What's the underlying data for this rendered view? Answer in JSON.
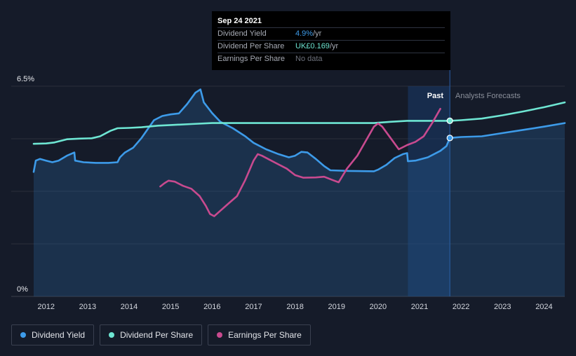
{
  "tooltip": {
    "date": "Sep 24 2021",
    "rows": [
      {
        "label": "Dividend Yield",
        "value": "4.9%",
        "unit": " /yr",
        "color": "#3d9be9"
      },
      {
        "label": "Dividend Per Share",
        "value": "UK£0.169",
        "unit": " /yr",
        "color": "#6ee6d3"
      },
      {
        "label": "Earnings Per Share",
        "value": "No data",
        "unit": "",
        "color": "#6d717c"
      }
    ]
  },
  "legend": [
    {
      "label": "Dividend Yield",
      "color": "#3d9be9"
    },
    {
      "label": "Dividend Per Share",
      "color": "#6ee6d3"
    },
    {
      "label": "Earnings Per Share",
      "color": "#c84a8f"
    }
  ],
  "chart_data": {
    "type": "line",
    "y_top_label": "6.5%",
    "y_bottom_label": "0%",
    "ylim": [
      0,
      6.5
    ],
    "xlim": [
      2011.7,
      2024.5
    ],
    "x_ticks": [
      "2012",
      "2013",
      "2014",
      "2015",
      "2016",
      "2017",
      "2018",
      "2019",
      "2020",
      "2021",
      "2022",
      "2023",
      "2024"
    ],
    "past_label": "Past",
    "forecast_label": "Analysts Forecasts",
    "forecast_start": 2021.73,
    "forecast_band_start": 2020.72,
    "grid": true,
    "series": [
      {
        "name": "Dividend Yield",
        "color": "#3d9be9",
        "area": true,
        "points": [
          [
            2011.7,
            3.85
          ],
          [
            2011.75,
            4.2
          ],
          [
            2011.85,
            4.25
          ],
          [
            2012.0,
            4.2
          ],
          [
            2012.15,
            4.15
          ],
          [
            2012.3,
            4.2
          ],
          [
            2012.5,
            4.35
          ],
          [
            2012.68,
            4.45
          ],
          [
            2012.7,
            4.2
          ],
          [
            2012.9,
            4.15
          ],
          [
            2013.2,
            4.13
          ],
          [
            2013.5,
            4.13
          ],
          [
            2013.72,
            4.15
          ],
          [
            2013.78,
            4.3
          ],
          [
            2013.9,
            4.45
          ],
          [
            2014.1,
            4.6
          ],
          [
            2014.3,
            4.9
          ],
          [
            2014.6,
            5.45
          ],
          [
            2014.8,
            5.58
          ],
          [
            2015.0,
            5.63
          ],
          [
            2015.2,
            5.66
          ],
          [
            2015.4,
            5.95
          ],
          [
            2015.6,
            6.3
          ],
          [
            2015.72,
            6.4
          ],
          [
            2015.8,
            6.0
          ],
          [
            2016.0,
            5.67
          ],
          [
            2016.2,
            5.4
          ],
          [
            2016.5,
            5.2
          ],
          [
            2016.8,
            4.95
          ],
          [
            2017.0,
            4.75
          ],
          [
            2017.3,
            4.55
          ],
          [
            2017.6,
            4.4
          ],
          [
            2017.85,
            4.3
          ],
          [
            2018.0,
            4.35
          ],
          [
            2018.15,
            4.47
          ],
          [
            2018.3,
            4.45
          ],
          [
            2018.5,
            4.25
          ],
          [
            2018.7,
            4.03
          ],
          [
            2018.85,
            3.9
          ],
          [
            2019.3,
            3.88
          ],
          [
            2019.9,
            3.87
          ],
          [
            2020.0,
            3.92
          ],
          [
            2020.2,
            4.07
          ],
          [
            2020.4,
            4.28
          ],
          [
            2020.6,
            4.4
          ],
          [
            2020.7,
            4.43
          ],
          [
            2020.72,
            4.18
          ],
          [
            2020.9,
            4.2
          ],
          [
            2021.2,
            4.3
          ],
          [
            2021.5,
            4.5
          ],
          [
            2021.65,
            4.65
          ],
          [
            2021.73,
            4.9
          ],
          [
            2022.0,
            4.93
          ],
          [
            2022.5,
            4.95
          ],
          [
            2023.0,
            5.05
          ],
          [
            2023.5,
            5.15
          ],
          [
            2024.0,
            5.25
          ],
          [
            2024.5,
            5.36
          ]
        ]
      },
      {
        "name": "Dividend Per Share",
        "color": "#6ee6d3",
        "area": false,
        "points": [
          [
            2011.7,
            4.72
          ],
          [
            2012.0,
            4.73
          ],
          [
            2012.2,
            4.76
          ],
          [
            2012.5,
            4.86
          ],
          [
            2012.8,
            4.88
          ],
          [
            2013.1,
            4.89
          ],
          [
            2013.3,
            4.95
          ],
          [
            2013.55,
            5.12
          ],
          [
            2013.72,
            5.2
          ],
          [
            2014.0,
            5.21
          ],
          [
            2014.3,
            5.23
          ],
          [
            2014.7,
            5.28
          ],
          [
            2015.0,
            5.3
          ],
          [
            2015.5,
            5.33
          ],
          [
            2016.0,
            5.36
          ],
          [
            2017.0,
            5.36
          ],
          [
            2018.0,
            5.36
          ],
          [
            2019.0,
            5.36
          ],
          [
            2019.9,
            5.36
          ],
          [
            2020.3,
            5.4
          ],
          [
            2020.7,
            5.43
          ],
          [
            2021.0,
            5.43
          ],
          [
            2021.5,
            5.43
          ],
          [
            2021.73,
            5.43
          ],
          [
            2022.0,
            5.45
          ],
          [
            2022.5,
            5.5
          ],
          [
            2023.0,
            5.6
          ],
          [
            2023.5,
            5.72
          ],
          [
            2024.0,
            5.85
          ],
          [
            2024.5,
            6.0
          ]
        ]
      },
      {
        "name": "Earnings Per Share",
        "color": "#c84a8f",
        "area": false,
        "points": [
          [
            2014.75,
            3.4
          ],
          [
            2014.85,
            3.5
          ],
          [
            2014.95,
            3.58
          ],
          [
            2015.1,
            3.55
          ],
          [
            2015.3,
            3.42
          ],
          [
            2015.5,
            3.33
          ],
          [
            2015.7,
            3.1
          ],
          [
            2015.85,
            2.8
          ],
          [
            2015.95,
            2.55
          ],
          [
            2016.05,
            2.48
          ],
          [
            2016.2,
            2.65
          ],
          [
            2016.4,
            2.88
          ],
          [
            2016.6,
            3.1
          ],
          [
            2016.8,
            3.6
          ],
          [
            2017.0,
            4.2
          ],
          [
            2017.1,
            4.4
          ],
          [
            2017.2,
            4.35
          ],
          [
            2017.5,
            4.15
          ],
          [
            2017.8,
            3.95
          ],
          [
            2018.0,
            3.75
          ],
          [
            2018.2,
            3.67
          ],
          [
            2018.5,
            3.68
          ],
          [
            2018.7,
            3.7
          ],
          [
            2018.9,
            3.6
          ],
          [
            2019.05,
            3.53
          ],
          [
            2019.25,
            3.95
          ],
          [
            2019.5,
            4.35
          ],
          [
            2019.7,
            4.8
          ],
          [
            2019.9,
            5.25
          ],
          [
            2020.0,
            5.35
          ],
          [
            2020.1,
            5.25
          ],
          [
            2020.3,
            4.9
          ],
          [
            2020.5,
            4.55
          ],
          [
            2020.7,
            4.68
          ],
          [
            2020.9,
            4.78
          ],
          [
            2021.1,
            4.95
          ],
          [
            2021.3,
            5.35
          ],
          [
            2021.5,
            5.8
          ]
        ]
      }
    ],
    "markers": [
      {
        "series": "Dividend Yield",
        "x": 2021.73,
        "y": 4.9
      },
      {
        "series": "Dividend Per Share",
        "x": 2021.73,
        "y": 5.43
      }
    ]
  }
}
